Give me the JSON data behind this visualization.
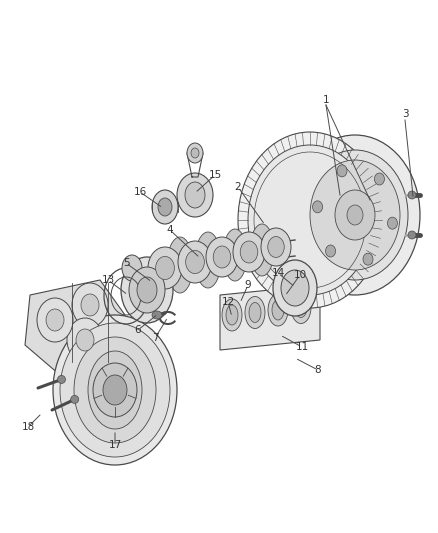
{
  "background_color": "#ffffff",
  "line_color": "#4a4a4a",
  "label_color": "#333333",
  "fig_width": 4.38,
  "fig_height": 5.33,
  "dpi": 100,
  "label_fontsize": 7.5,
  "lw": 0.8
}
